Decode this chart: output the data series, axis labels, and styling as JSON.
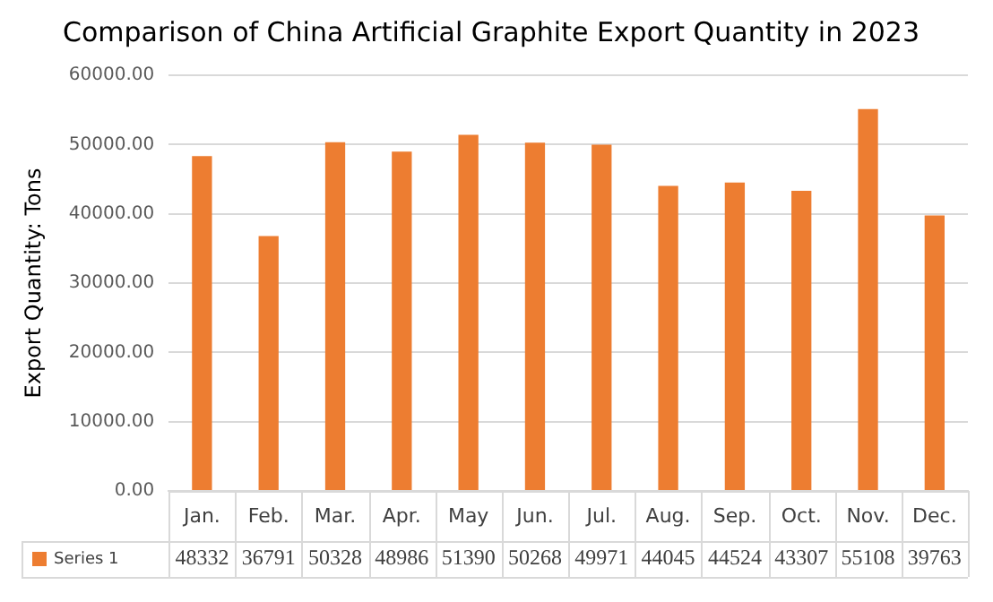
{
  "chart_data": {
    "type": "bar",
    "title": "Comparison of China Artificial Graphite Export Quantity in 2023",
    "ylabel": "Export Quantity: Tons",
    "categories": [
      "Jan.",
      "Feb.",
      "Mar.",
      "Apr.",
      "May",
      "Jun.",
      "Jul.",
      "Aug.",
      "Sep.",
      "Oct.",
      "Nov.",
      "Dec."
    ],
    "series": [
      {
        "name": "Series 1",
        "color": "#ed7d31",
        "values": [
          48332,
          36791,
          50328,
          48986,
          51390,
          50268,
          49971,
          44045,
          44524,
          43307,
          55108,
          39763
        ]
      }
    ],
    "ylim": [
      0,
      60000
    ],
    "yticks": [
      {
        "value": 0,
        "label": "0.00"
      },
      {
        "value": 10000,
        "label": "10000.00"
      },
      {
        "value": 20000,
        "label": "20000.00"
      },
      {
        "value": 30000,
        "label": "30000.00"
      },
      {
        "value": 40000,
        "label": "40000.00"
      },
      {
        "value": 50000,
        "label": "50000.00"
      },
      {
        "value": 60000,
        "label": "60000.00"
      }
    ],
    "grid": "y",
    "data_labels": true
  }
}
